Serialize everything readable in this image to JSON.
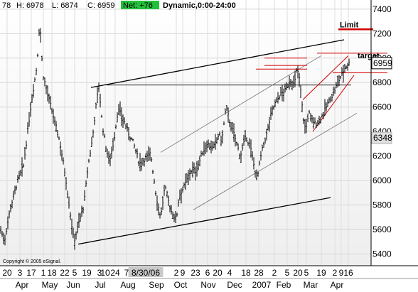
{
  "header": {
    "segments": [
      {
        "text": "78",
        "color": "#000000"
      },
      {
        "text": "H: 6978",
        "color": "#000000"
      },
      {
        "text": "L: 6874",
        "color": "#000000"
      },
      {
        "text": "C: 6959",
        "color": "#000000"
      },
      {
        "text": "Net: +76",
        "color": "#ffffff",
        "bg": "#22c03a"
      },
      {
        "text": "Dynamic,0:00-24:00",
        "color": "#000000",
        "bold": true
      }
    ]
  },
  "copyright": "Copyright © 2005 eSignal.",
  "chart_data": {
    "type": "bar",
    "style": "ohlc",
    "yticks": [
      5400,
      5600,
      5800,
      6000,
      6200,
      6400,
      6600,
      6800,
      7000,
      7200,
      7400
    ],
    "ylim": [
      5350,
      7440
    ],
    "x_day_labels": [
      "20",
      "3",
      "17",
      "1",
      "18",
      "22",
      "5",
      "19",
      "3",
      "10",
      "24",
      "7",
      "8/30/06",
      "2",
      "9",
      "23",
      "6",
      "20",
      "4",
      "18",
      "28",
      "2",
      "5",
      "20",
      "5",
      "19",
      "2",
      "9",
      "16"
    ],
    "x_month_labels": [
      "Apr",
      "May",
      "Jun",
      "Jul",
      "Aug",
      "Sep",
      "Oct",
      "Nov",
      "Dec",
      "2007",
      "Feb",
      "Mar",
      "Apr"
    ],
    "price_anchors": [
      [
        0,
        5620
      ],
      [
        6,
        5500
      ],
      [
        14,
        5760
      ],
      [
        24,
        5980
      ],
      [
        33,
        6120
      ],
      [
        44,
        6640
      ],
      [
        52,
        6940
      ],
      [
        56,
        7310
      ],
      [
        60,
        6880
      ],
      [
        68,
        6680
      ],
      [
        76,
        6500
      ],
      [
        84,
        6320
      ],
      [
        92,
        6040
      ],
      [
        100,
        5680
      ],
      [
        104,
        5500
      ],
      [
        112,
        5680
      ],
      [
        118,
        5800
      ],
      [
        124,
        6120
      ],
      [
        130,
        6340
      ],
      [
        134,
        6560
      ],
      [
        139,
        6780
      ],
      [
        144,
        6450
      ],
      [
        150,
        6240
      ],
      [
        154,
        6160
      ],
      [
        160,
        6320
      ],
      [
        166,
        6580
      ],
      [
        172,
        6520
      ],
      [
        180,
        6400
      ],
      [
        188,
        6300
      ],
      [
        196,
        6140
      ],
      [
        204,
        6180
      ],
      [
        212,
        6220
      ],
      [
        220,
        5860
      ],
      [
        226,
        5700
      ],
      [
        232,
        5950
      ],
      [
        240,
        5760
      ],
      [
        248,
        5680
      ],
      [
        252,
        5880
      ],
      [
        260,
        5960
      ],
      [
        268,
        6080
      ],
      [
        276,
        6080
      ],
      [
        284,
        6220
      ],
      [
        292,
        6300
      ],
      [
        300,
        6260
      ],
      [
        308,
        6380
      ],
      [
        312,
        6320
      ],
      [
        318,
        6600
      ],
      [
        324,
        6460
      ],
      [
        330,
        6360
      ],
      [
        338,
        6200
      ],
      [
        346,
        6360
      ],
      [
        352,
        6280
      ],
      [
        358,
        6100
      ],
      [
        362,
        6020
      ],
      [
        368,
        6230
      ],
      [
        376,
        6400
      ],
      [
        382,
        6560
      ],
      [
        388,
        6640
      ],
      [
        394,
        6700
      ],
      [
        402,
        6740
      ],
      [
        408,
        6820
      ],
      [
        414,
        6780
      ],
      [
        418,
        6920
      ],
      [
        422,
        6800
      ],
      [
        426,
        6540
      ],
      [
        430,
        6400
      ],
      [
        434,
        6560
      ],
      [
        438,
        6500
      ],
      [
        444,
        6460
      ],
      [
        450,
        6500
      ],
      [
        456,
        6560
      ],
      [
        462,
        6640
      ],
      [
        468,
        6700
      ],
      [
        474,
        6780
      ],
      [
        480,
        6860
      ],
      [
        486,
        6930
      ],
      [
        491,
        6959
      ]
    ],
    "trend_lines": [
      {
        "x1": 110,
        "y1": 5480,
        "x2": 465,
        "y2": 5860,
        "color": "#000000",
        "width": 1.3
      },
      {
        "x1": 128,
        "y1": 6760,
        "x2": 484,
        "y2": 7150,
        "color": "#000000",
        "width": 1.3
      },
      {
        "x1": 150,
        "y1": 6780,
        "x2": 494,
        "y2": 6780,
        "color": "#000000",
        "width": 0.8
      },
      {
        "x1": 226,
        "y1": 6230,
        "x2": 452,
        "y2": 7020,
        "color": "#707070",
        "width": 0.8
      },
      {
        "x1": 272,
        "y1": 5760,
        "x2": 502,
        "y2": 6550,
        "color": "#707070",
        "width": 0.8
      },
      {
        "x1": 372,
        "y1": 7000,
        "x2": 432,
        "y2": 7000,
        "color": "#d40000",
        "width": 1
      },
      {
        "x1": 372,
        "y1": 6940,
        "x2": 432,
        "y2": 6940,
        "color": "#d40000",
        "width": 1
      },
      {
        "x1": 360,
        "y1": 6910,
        "x2": 432,
        "y2": 6910,
        "color": "#d40000",
        "width": 1
      },
      {
        "x1": 446,
        "y1": 7040,
        "x2": 545,
        "y2": 7040,
        "color": "#d40000",
        "width": 1
      },
      {
        "x1": 468,
        "y1": 6880,
        "x2": 545,
        "y2": 6880,
        "color": "#d40000",
        "width": 1
      },
      {
        "x1": 476,
        "y1": 7235,
        "x2": 525,
        "y2": 7235,
        "color": "#d40000",
        "width": 2.5
      },
      {
        "x1": 426,
        "y1": 6660,
        "x2": 490,
        "y2": 7020,
        "color": "#d40000",
        "width": 1
      },
      {
        "x1": 440,
        "y1": 6400,
        "x2": 498,
        "y2": 6860,
        "color": "#d40000",
        "width": 1
      }
    ],
    "annotations": [
      {
        "text": "Limit",
        "x": 478,
        "y": 7250,
        "bold": true
      },
      {
        "text": "target",
        "x": 503,
        "y": 7000,
        "bold": true
      }
    ],
    "price_tags": [
      {
        "text": "6959",
        "value": 6959,
        "bg": "#ffffff",
        "border": "#000000"
      },
      {
        "text": "6348",
        "value": 6348,
        "bg": "#e0e0e0",
        "border": "#b0b0b0"
      }
    ]
  }
}
